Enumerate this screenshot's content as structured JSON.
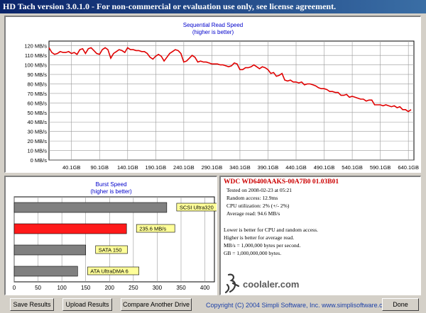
{
  "window": {
    "title": "HD Tach version 3.0.1.0  -  For non-commercial or evaluation use only, see license agreement."
  },
  "read_chart": {
    "title": "Sequential Read Speed",
    "subtitle": "(higher is better)",
    "y_ticks": [
      "0 MB/s",
      "10 MB/s",
      "20 MB/s",
      "30 MB/s",
      "40 MB/s",
      "50 MB/s",
      "60 MB/s",
      "70 MB/s",
      "80 MB/s",
      "90 MB/s",
      "100 MB/s",
      "110 MB/s",
      "120 MB/s"
    ],
    "x_ticks": [
      "40.1GB",
      "90.1GB",
      "140.1GB",
      "190.1GB",
      "240.1GB",
      "290.1GB",
      "340.1GB",
      "390.1GB",
      "440.1GB",
      "490.1GB",
      "540.1GB",
      "590.1GB",
      "640.1GB"
    ]
  },
  "burst_chart": {
    "title": "Burst Speed",
    "subtitle": "(higher is better)",
    "x_ticks": [
      "0",
      "50",
      "100",
      "150",
      "200",
      "250",
      "300",
      "350",
      "400"
    ]
  },
  "chart_data": [
    {
      "type": "line",
      "title": "Sequential Read Speed",
      "subtitle": "(higher is better)",
      "xlabel": "",
      "ylabel": "",
      "xlim": [
        0,
        650
      ],
      "ylim": [
        0,
        125
      ],
      "x": [
        0,
        5,
        10,
        15,
        20,
        25,
        30,
        35,
        40,
        45,
        50,
        55,
        60,
        65,
        70,
        75,
        80,
        85,
        90,
        95,
        100,
        105,
        110,
        115,
        120,
        125,
        130,
        135,
        140,
        145,
        150,
        155,
        160,
        165,
        170,
        175,
        180,
        185,
        190,
        195,
        200,
        205,
        210,
        215,
        220,
        225,
        230,
        235,
        240,
        245,
        250,
        255,
        260,
        265,
        270,
        275,
        280,
        285,
        290,
        295,
        300,
        305,
        310,
        315,
        320,
        325,
        330,
        335,
        340,
        345,
        350,
        355,
        360,
        365,
        370,
        375,
        380,
        385,
        390,
        395,
        400,
        405,
        410,
        415,
        420,
        425,
        430,
        435,
        440,
        445,
        450,
        455,
        460,
        465,
        470,
        475,
        480,
        485,
        490,
        495,
        500,
        505,
        510,
        515,
        520,
        525,
        530,
        535,
        540,
        545,
        550,
        555,
        560,
        565,
        570,
        575,
        580,
        585,
        590,
        595,
        600,
        605,
        610,
        615,
        620,
        625,
        630,
        635,
        640,
        645
      ],
      "y": [
        118,
        113,
        111,
        112,
        114,
        113,
        113,
        114,
        112,
        113,
        111,
        116,
        117,
        112,
        117,
        118,
        115,
        112,
        111,
        116,
        118,
        116,
        107,
        112,
        114,
        116,
        115,
        113,
        118,
        116,
        116,
        115,
        115,
        114,
        114,
        112,
        108,
        106,
        109,
        111,
        109,
        104,
        108,
        112,
        114,
        116,
        115,
        112,
        103,
        104,
        107,
        110,
        108,
        103,
        104,
        103,
        103,
        102,
        101,
        101,
        101,
        100,
        100,
        99,
        98,
        99,
        102,
        101,
        95,
        95,
        97,
        97,
        98,
        100,
        98,
        96,
        98,
        97,
        95,
        91,
        92,
        88,
        89,
        91,
        84,
        83,
        84,
        82,
        82,
        81,
        82,
        79,
        80,
        80,
        79,
        78,
        76,
        75,
        75,
        74,
        72,
        72,
        71,
        71,
        68,
        68,
        69,
        66,
        67,
        66,
        65,
        64,
        64,
        62,
        63,
        63,
        58,
        58,
        58,
        57,
        58,
        57,
        56,
        57,
        55,
        56,
        53,
        53,
        51,
        53
      ]
    },
    {
      "type": "bar",
      "title": "Burst Speed",
      "subtitle": "(higher is better)",
      "xlim": [
        0,
        420
      ],
      "categories": [
        "SCSI Ultra320",
        "235.6 MB/s",
        "SATA 150",
        "ATA UltraDMA 6"
      ],
      "values": [
        320,
        235.6,
        150,
        133
      ]
    }
  ],
  "drive_info": {
    "model": "WDC  WD6400AAKS-00A7B0 01.03B01",
    "tested_on": "Tested on 2008-02-23 at 05:21",
    "random_access": "Random access: 12.9ms",
    "cpu_utilization": "CPU utilization: 2% (+/- 2%)",
    "average_read": "Average read: 94.6 MB/s"
  },
  "notes": {
    "line1": "Lower is better for CPU and random access.",
    "line2": "Higher is better for average read.",
    "line3": "MB/s = 1,000,000 bytes per second.",
    "line4": "GB = 1,000,000,000 bytes."
  },
  "watermark": {
    "text": "coolaler.com"
  },
  "buttons": {
    "save": "Save Results",
    "upload": "Upload Results",
    "compare": "Compare Another Drive",
    "done": "Done"
  },
  "footer": {
    "copyright": "Copyright (C) 2004 Simpli Software, Inc. www.simplisoftware.com"
  },
  "colors": {
    "line": "#e00000",
    "bar_gray": "#808080",
    "bar_red": "#ff1a1a",
    "label_bg": "#ffff99",
    "title_blue": "#0000cc"
  }
}
